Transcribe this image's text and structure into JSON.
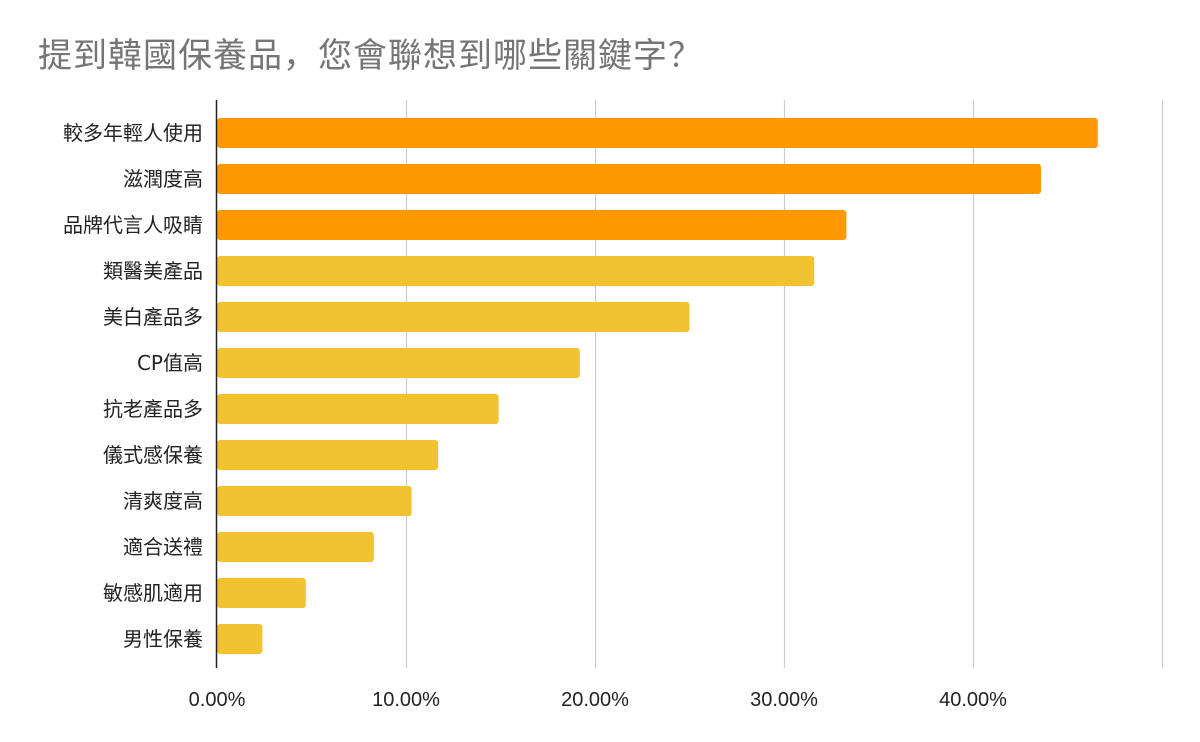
{
  "chart_title": "提到韓國保養品，您會聯想到哪些關鍵字？",
  "chart_data": {
    "type": "bar",
    "orientation": "horizontal",
    "title": "提到韓國保養品，您會聯想到哪些關鍵字？",
    "xlabel": "",
    "ylabel": "",
    "xlim": [
      0,
      0.5
    ],
    "x_ticks": [
      "0.00%",
      "10.00%",
      "20.00%",
      "30.00%",
      "40.00%"
    ],
    "grid": true,
    "legend": "none",
    "categories": [
      "較多年輕人使用",
      "滋潤度高",
      "品牌代言人吸睛",
      "類醫美產品",
      "美白產品多",
      "CP值高",
      "抗老產品多",
      "儀式感保養",
      "清爽度高",
      "適合送禮",
      "敏感肌適用",
      "男性保養"
    ],
    "values": [
      0.466,
      0.436,
      0.333,
      0.316,
      0.25,
      0.192,
      0.149,
      0.117,
      0.103,
      0.083,
      0.047,
      0.024
    ],
    "highlight_count": 3,
    "colors": {
      "highlight": "#ff9900",
      "normal": "#f1c232",
      "grid": "#cccccc",
      "axis": "#222222"
    }
  }
}
